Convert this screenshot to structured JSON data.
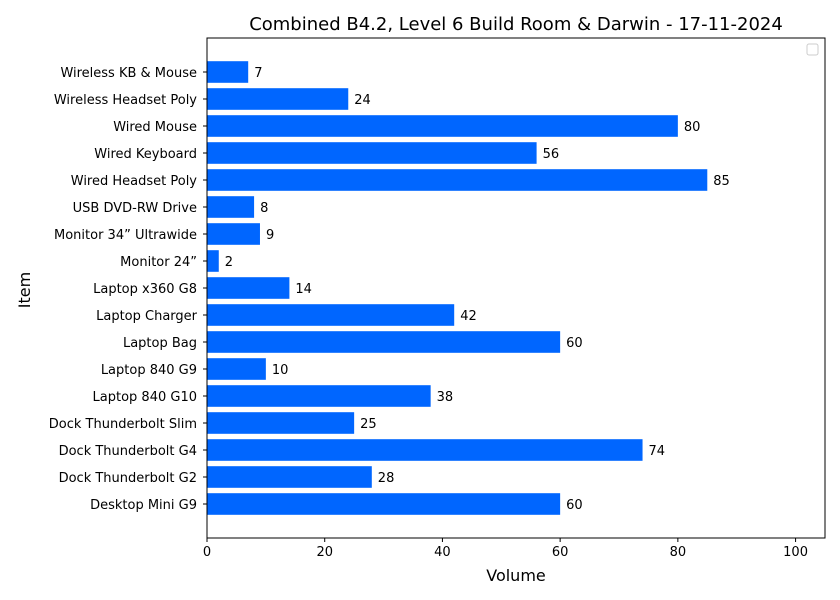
{
  "chart_data": {
    "type": "bar",
    "orientation": "horizontal",
    "title": "Combined B4.2, Level 6 Build Room & Darwin - 17-11-2024",
    "xlabel": "Volume",
    "ylabel": "Item",
    "xlim": [
      0,
      105
    ],
    "x_ticks": [
      0,
      20,
      40,
      60,
      80,
      100
    ],
    "grid": false,
    "legend": "empty, top-right",
    "bar_color": "#0066ff",
    "categories": [
      "Desktop Mini G9",
      "Dock Thunderbolt G2",
      "Dock Thunderbolt G4",
      "Dock Thunderbolt Slim",
      "Laptop 840 G10",
      "Laptop 840 G9",
      "Laptop Bag",
      "Laptop Charger ",
      "Laptop x360 G8",
      "Monitor 24”",
      "Monitor 34” Ultrawide",
      "USB DVD-RW Drive",
      "Wired Headset Poly",
      "Wired Keyboard",
      "Wired Mouse",
      "Wireless Headset Poly ",
      "Wireless KB & Mouse"
    ],
    "values": [
      60,
      28,
      74,
      25,
      38,
      10,
      60,
      42,
      14,
      2,
      9,
      8,
      85,
      56,
      80,
      24,
      7
    ]
  }
}
